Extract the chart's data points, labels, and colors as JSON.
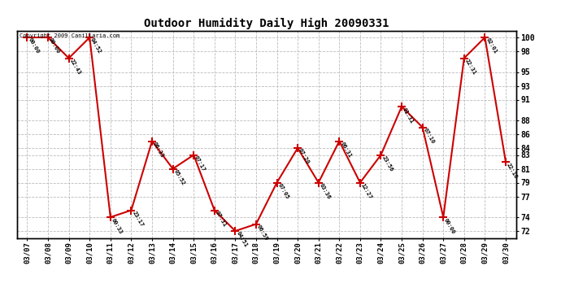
{
  "title": "Outdoor Humidity Daily High 20090331",
  "dates": [
    "03/07",
    "03/08",
    "03/09",
    "03/10",
    "03/11",
    "03/12",
    "03/13",
    "03/14",
    "03/15",
    "03/16",
    "03/17",
    "03/18",
    "03/19",
    "03/20",
    "03/21",
    "03/22",
    "03/23",
    "03/24",
    "03/25",
    "03/26",
    "03/27",
    "03/28",
    "03/29",
    "03/30"
  ],
  "values": [
    100,
    100,
    97,
    100,
    74,
    75,
    85,
    81,
    83,
    75,
    72,
    73,
    79,
    84,
    79,
    85,
    79,
    83,
    90,
    87,
    74,
    97,
    100,
    82
  ],
  "times": [
    "00:00",
    "00:00",
    "22:43",
    "04:52",
    "00:33",
    "23:17",
    "06:33",
    "05:52",
    "07:17",
    "07:31",
    "04:51",
    "06:59",
    "07:05",
    "07:20",
    "03:36",
    "06:31",
    "12:27",
    "23:56",
    "01:31",
    "07:10",
    "00:00",
    "22:31",
    "02:01",
    "22:10"
  ],
  "line_color": "#cc0000",
  "marker_color": "#cc0000",
  "bg_color": "#ffffff",
  "grid_color": "#bbbbbb",
  "ylim": [
    71,
    101
  ],
  "yticks": [
    72,
    74,
    77,
    79,
    81,
    83,
    84,
    86,
    88,
    91,
    93,
    95,
    98,
    100
  ],
  "copyright_text": "Copyright 2009 Canillaria.com"
}
